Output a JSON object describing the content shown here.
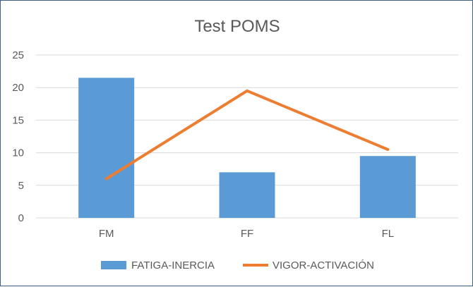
{
  "chart_data": {
    "type": "bar",
    "title": "Test POMS",
    "xlabel": "",
    "ylabel": "",
    "categories": [
      "FM",
      "FF",
      "FL"
    ],
    "ylim": [
      0,
      25
    ],
    "yticks": [
      0,
      5,
      10,
      15,
      20,
      25
    ],
    "grid": true,
    "legend_position": "bottom",
    "series": [
      {
        "name": "FATIGA-INERCIA",
        "kind": "bar",
        "color": "#5b9bd5",
        "values": [
          21.5,
          7,
          9.5
        ]
      },
      {
        "name": "VIGOR-ACTIVACIÓN",
        "kind": "line",
        "color": "#ed7d31",
        "values": [
          6,
          19.5,
          10.5
        ]
      }
    ]
  }
}
